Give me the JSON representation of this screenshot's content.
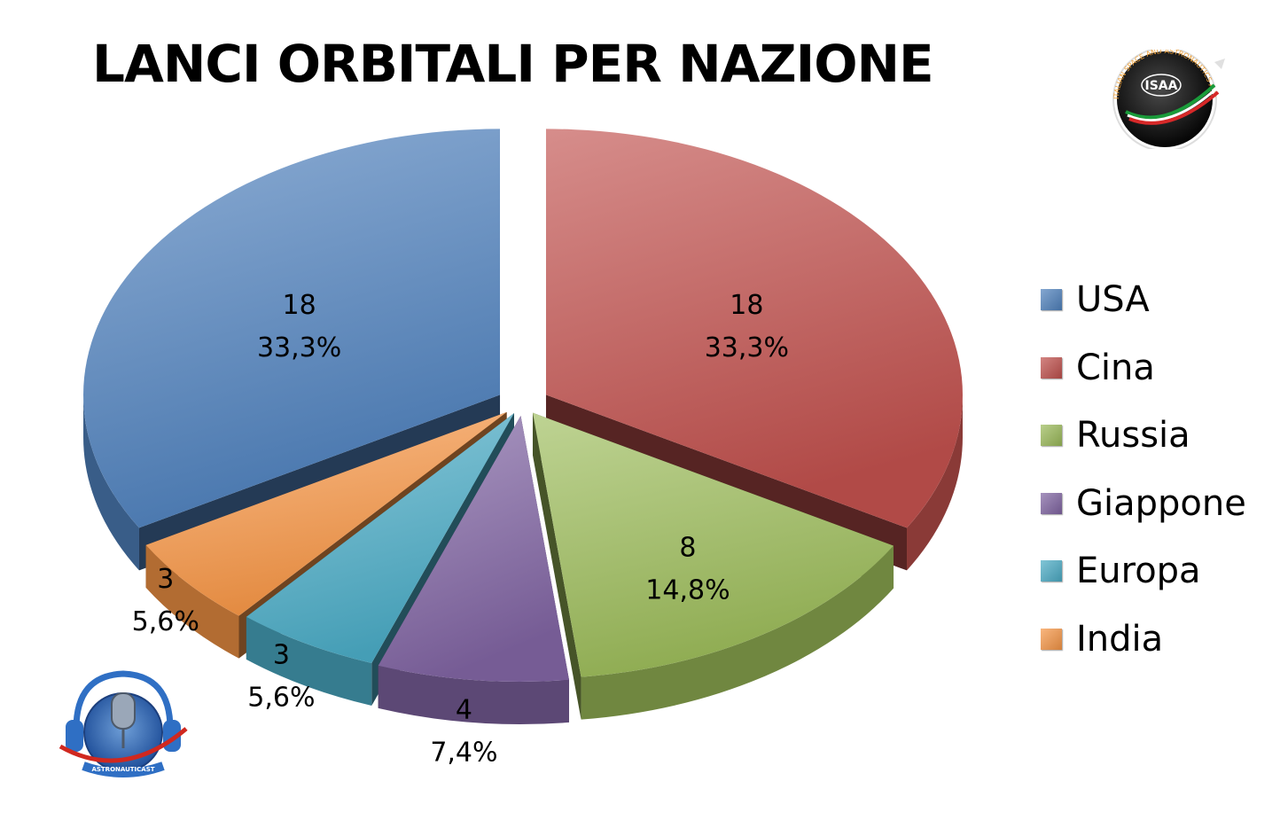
{
  "chart_data": {
    "type": "pie",
    "title": "LANCI ORBITALI PER NAZIONE",
    "categories": [
      "USA",
      "Cina",
      "Russia",
      "Giappone",
      "Europa",
      "India"
    ],
    "values": [
      18,
      18,
      8,
      4,
      3,
      3
    ],
    "percent_labels": [
      "33,3%",
      "33,3%",
      "14,8%",
      "7,4%",
      "5,6%",
      "5,6%"
    ],
    "colors": [
      "#4f81bd",
      "#c0504d",
      "#9bbb59",
      "#8064a2",
      "#4bacc6",
      "#f79646"
    ],
    "legend_position": "right",
    "exploded": true,
    "three_d": true
  },
  "logos": {
    "isaa_text": "ISAA",
    "isaa_ring_text": "ITALIAN SPACE AND ASTRONAUTICS ASSOCIATION",
    "astronauticast_text": "ASTRONAUTICAST"
  }
}
